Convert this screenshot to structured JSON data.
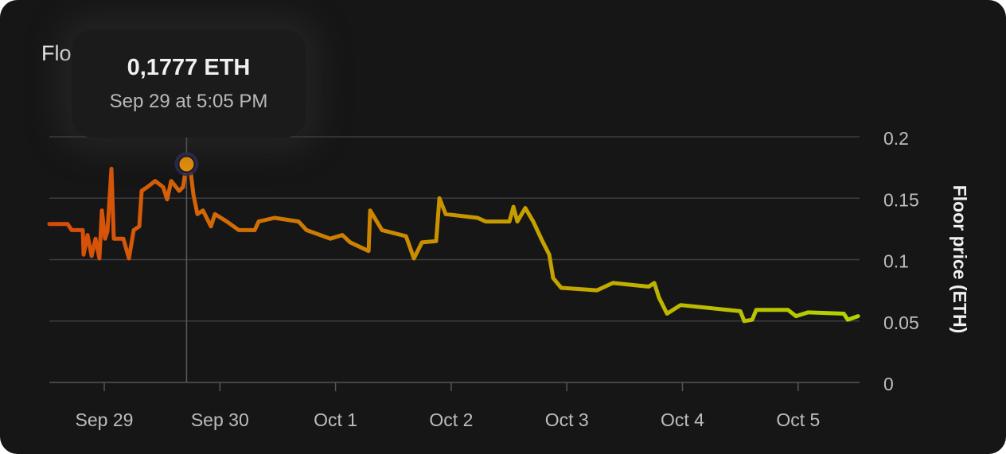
{
  "title": "Floor price",
  "tooltip": {
    "value": "0,1777 ETH",
    "date": "Sep 29 at 5:05 PM"
  },
  "colors": {
    "background": "#161616",
    "line_start": "#d94a0a",
    "line_mid": "#c99400",
    "line_end": "#b4d400",
    "marker": "#e8900a",
    "marker_halo": "#2e2a55"
  },
  "chart_data": {
    "type": "line",
    "title": "",
    "xlabel": "",
    "ylabel": "Floor price (ETH)",
    "ylim": [
      0,
      0.2
    ],
    "yticks": [
      "0",
      "0.05",
      "0.1",
      "0.15",
      "0.2"
    ],
    "xticks": [
      "Sep 29",
      "Sep 30",
      "Oct 1",
      "Oct 2",
      "Oct 3",
      "Oct 4",
      "Oct 5"
    ],
    "xlim": [
      "Sep 28 12:36",
      "Sep 5 12:45"
    ],
    "grid": "horizontal",
    "highlight": {
      "x": "Sep 29 17:05",
      "y": 0.1777
    },
    "points": [
      [
        "Sep 28 12:36",
        0.129
      ],
      [
        "Sep 28 16:24",
        0.129
      ],
      [
        "Sep 28 17:14",
        0.124
      ],
      [
        "Sep 28 19:32",
        0.124
      ],
      [
        "Sep 28 19:42",
        0.104
      ],
      [
        "Sep 28 20:32",
        0.12
      ],
      [
        "Sep 28 21:22",
        0.103
      ],
      [
        "Sep 28 22:11",
        0.117
      ],
      [
        "Sep 28 23:00",
        0.101
      ],
      [
        "Sep 28 23:30",
        0.14
      ],
      [
        "Sep 29 00:10",
        0.117
      ],
      [
        "Sep 29 00:40",
        0.123
      ],
      [
        "Sep 29 01:29",
        0.174
      ],
      [
        "Sep 29 01:59",
        0.117
      ],
      [
        "Sep 29 03:58",
        0.117
      ],
      [
        "Sep 29 05:07",
        0.101
      ],
      [
        "Sep 29 06:07",
        0.124
      ],
      [
        "Sep 29 07:16",
        0.127
      ],
      [
        "Sep 29 07:46",
        0.156
      ],
      [
        "Sep 29 08:55",
        0.159
      ],
      [
        "Sep 29 10:34",
        0.164
      ],
      [
        "Sep 29 12:13",
        0.159
      ],
      [
        "Sep 29 13:03",
        0.149
      ],
      [
        "Sep 29 13:53",
        0.164
      ],
      [
        "Sep 29 15:32",
        0.156
      ],
      [
        "Sep 29 16:21",
        0.159
      ],
      [
        "Sep 29 17:05",
        0.1777
      ],
      [
        "Sep 29 18:00",
        0.169
      ],
      [
        "Sep 29 18:30",
        0.153
      ],
      [
        "Sep 29 19:20",
        0.137
      ],
      [
        "Sep 29 20:29",
        0.14
      ],
      [
        "Sep 29 22:08",
        0.127
      ],
      [
        "Sep 29 22:58",
        0.137
      ],
      [
        "Sep 30 01:26",
        0.131
      ],
      [
        "Sep 30 03:55",
        0.124
      ],
      [
        "Sep 30 07:13",
        0.124
      ],
      [
        "Sep 30 08:03",
        0.131
      ],
      [
        "Sep 30 11:21",
        0.134
      ],
      [
        "Sep 30 16:19",
        0.131
      ],
      [
        "Sep 30 17:58",
        0.124
      ],
      [
        "Sep 30 22:55",
        0.117
      ],
      [
        "Oct 1 01:24",
        0.12
      ],
      [
        "Oct 1 03:03",
        0.114
      ],
      [
        "Oct 1 06:51",
        0.107
      ],
      [
        "Oct 1 07:11",
        0.14
      ],
      [
        "Oct 1 09:39",
        0.124
      ],
      [
        "Oct 1 14:37",
        0.119
      ],
      [
        "Oct 1 16:16",
        0.101
      ],
      [
        "Oct 1 17:55",
        0.114
      ],
      [
        "Oct 1 20:53",
        0.115
      ],
      [
        "Oct 1 21:33",
        0.15
      ],
      [
        "Oct 1 22:52",
        0.137
      ],
      [
        "Oct 2 05:29",
        0.134
      ],
      [
        "Oct 2 07:08",
        0.131
      ],
      [
        "Oct 2 12:05",
        0.131
      ],
      [
        "Oct 2 12:55",
        0.143
      ],
      [
        "Oct 2 13:44",
        0.131
      ],
      [
        "Oct 2 15:23",
        0.142
      ],
      [
        "Oct 2 17:02",
        0.131
      ],
      [
        "Oct 2 18:41",
        0.117
      ],
      [
        "Oct 2 20:21",
        0.104
      ],
      [
        "Oct 2 21:10",
        0.085
      ],
      [
        "Oct 2 22:50",
        0.077
      ],
      [
        "Oct 3 06:16",
        0.075
      ],
      [
        "Oct 3 09:34",
        0.081
      ],
      [
        "Oct 3 17:00",
        0.078
      ],
      [
        "Oct 3 18:09",
        0.081
      ],
      [
        "Oct 3 19:08",
        0.069
      ],
      [
        "Oct 3 20:48",
        0.056
      ],
      [
        "Oct 3 23:36",
        0.063
      ],
      [
        "Oct 4 07:02",
        0.06
      ],
      [
        "Oct 4 12:00",
        0.058
      ],
      [
        "Oct 4 12:49",
        0.05
      ],
      [
        "Oct 4 14:28",
        0.051
      ],
      [
        "Oct 4 15:18",
        0.059
      ],
      [
        "Oct 4 21:54",
        0.059
      ],
      [
        "Oct 4 23:34",
        0.054
      ],
      [
        "Oct 5 02:03",
        0.057
      ],
      [
        "Oct 5 09:29",
        0.056
      ],
      [
        "Oct 5 10:18",
        0.051
      ],
      [
        "Oct 5 12:26",
        0.054
      ]
    ]
  }
}
